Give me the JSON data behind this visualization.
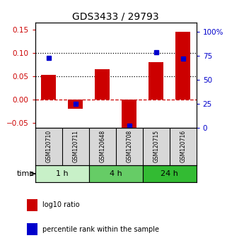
{
  "title": "GDS3433 / 29793",
  "samples": [
    "GSM120710",
    "GSM120711",
    "GSM120648",
    "GSM120708",
    "GSM120715",
    "GSM120716"
  ],
  "log10_ratio": [
    0.053,
    -0.02,
    0.065,
    -0.065,
    0.08,
    0.145
  ],
  "percentile_rank": [
    73,
    25,
    null,
    2,
    79,
    72
  ],
  "ylim_left": [
    -0.06,
    0.165
  ],
  "ylim_right": [
    0,
    110
  ],
  "yticks_left": [
    -0.05,
    0.0,
    0.05,
    0.1,
    0.15
  ],
  "yticks_right": [
    0,
    25,
    50,
    75,
    100
  ],
  "dotted_lines": [
    0.05,
    0.1
  ],
  "dashed_zero": 0.0,
  "bar_color": "#cc0000",
  "square_color": "#0000cc",
  "time_groups": [
    {
      "label": "1 h",
      "start": 0,
      "end": 2,
      "color": "#c8f0c8"
    },
    {
      "label": "4 h",
      "start": 2,
      "end": 4,
      "color": "#66cc66"
    },
    {
      "label": "24 h",
      "start": 4,
      "end": 6,
      "color": "#33bb33"
    }
  ],
  "time_label": "time",
  "legend_items": [
    {
      "label": "log10 ratio",
      "color": "#cc0000"
    },
    {
      "label": "percentile rank within the sample",
      "color": "#0000cc"
    }
  ],
  "bar_width": 0.55,
  "title_fontsize": 10,
  "tick_fontsize": 7.5,
  "sample_fontsize": 5.5,
  "time_fontsize": 8,
  "legend_fontsize": 7
}
